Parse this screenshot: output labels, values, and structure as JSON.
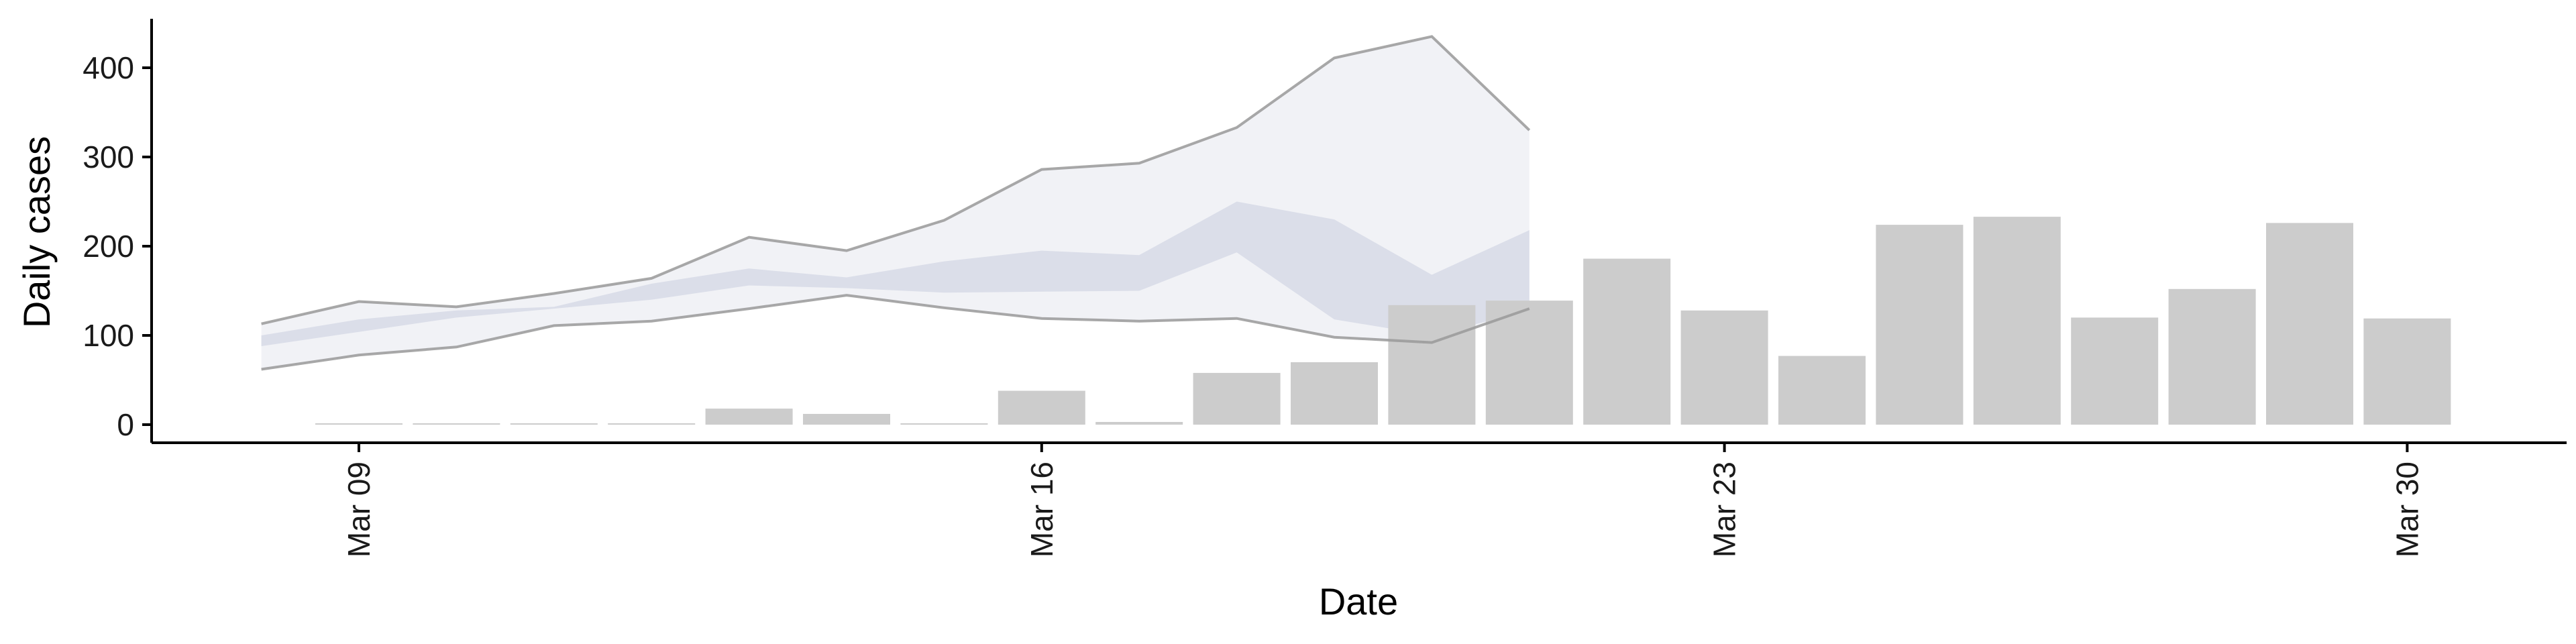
{
  "chart_data": {
    "type": "bar",
    "xlabel": "Date",
    "ylabel": "Daily cases",
    "ylim": [
      -20,
      455
    ],
    "y_ticks": [
      0,
      100,
      200,
      300,
      400
    ],
    "x_ticks": [
      {
        "date": "2020-03-09",
        "label": "Mar 09"
      },
      {
        "date": "2020-03-16",
        "label": "Mar 16"
      },
      {
        "date": "2020-03-23",
        "label": "Mar 23"
      },
      {
        "date": "2020-03-30",
        "label": "Mar 30"
      }
    ],
    "grid": false,
    "legend": "none",
    "bars": {
      "name": "Daily cases",
      "color": "#cccccc",
      "dates": [
        "2020-03-09",
        "2020-03-10",
        "2020-03-11",
        "2020-03-12",
        "2020-03-13",
        "2020-03-14",
        "2020-03-15",
        "2020-03-16",
        "2020-03-17",
        "2020-03-18",
        "2020-03-19",
        "2020-03-20",
        "2020-03-21",
        "2020-03-22",
        "2020-03-23",
        "2020-03-24",
        "2020-03-25",
        "2020-03-26",
        "2020-03-27",
        "2020-03-28",
        "2020-03-29",
        "2020-03-30"
      ],
      "values": [
        1,
        0,
        1,
        0,
        18,
        12,
        0,
        38,
        3,
        58,
        70,
        134,
        139,
        186,
        128,
        77,
        224,
        233,
        120,
        152,
        226,
        119
      ]
    },
    "bands": [
      {
        "name": "outer",
        "fill": "#eef0f5",
        "line": "#999999",
        "dates": [
          "2020-03-08",
          "2020-03-09",
          "2020-03-10",
          "2020-03-11",
          "2020-03-12",
          "2020-03-13",
          "2020-03-14",
          "2020-03-15",
          "2020-03-16",
          "2020-03-17",
          "2020-03-18",
          "2020-03-19",
          "2020-03-20",
          "2020-03-21"
        ],
        "upper": [
          113,
          138,
          132,
          147,
          164,
          210,
          195,
          229,
          286,
          293,
          333,
          411,
          435,
          330
        ],
        "lower": [
          62,
          78,
          87,
          111,
          116,
          130,
          145,
          131,
          119,
          116,
          119,
          98,
          92,
          130
        ]
      },
      {
        "name": "inner",
        "fill": "#d8dce8",
        "dates": [
          "2020-03-08",
          "2020-03-09",
          "2020-03-10",
          "2020-03-11",
          "2020-03-12",
          "2020-03-13",
          "2020-03-14",
          "2020-03-15",
          "2020-03-16",
          "2020-03-17",
          "2020-03-18",
          "2020-03-19",
          "2020-03-20",
          "2020-03-21"
        ],
        "upper": [
          100,
          118,
          128,
          132,
          158,
          175,
          165,
          183,
          195,
          190,
          250,
          230,
          168,
          218
        ],
        "lower": [
          88,
          104,
          120,
          130,
          140,
          156,
          153,
          148,
          149,
          150,
          193,
          118,
          100,
          128
        ]
      }
    ]
  }
}
